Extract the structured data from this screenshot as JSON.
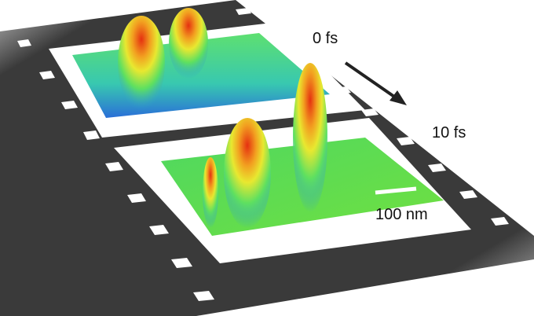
{
  "labels": {
    "time_start": "0 fs",
    "time_end": "10 fs",
    "scale_bar": "100 nm"
  },
  "colors": {
    "film": "#3a3a3a",
    "frame": "#ffffff",
    "peak_high": "#e53010",
    "peak_mid": "#f2e020",
    "surface": "#4fd860",
    "surface_low": "#2a6fd8"
  },
  "icons": {
    "time_arrow": "arrow-down-right"
  }
}
